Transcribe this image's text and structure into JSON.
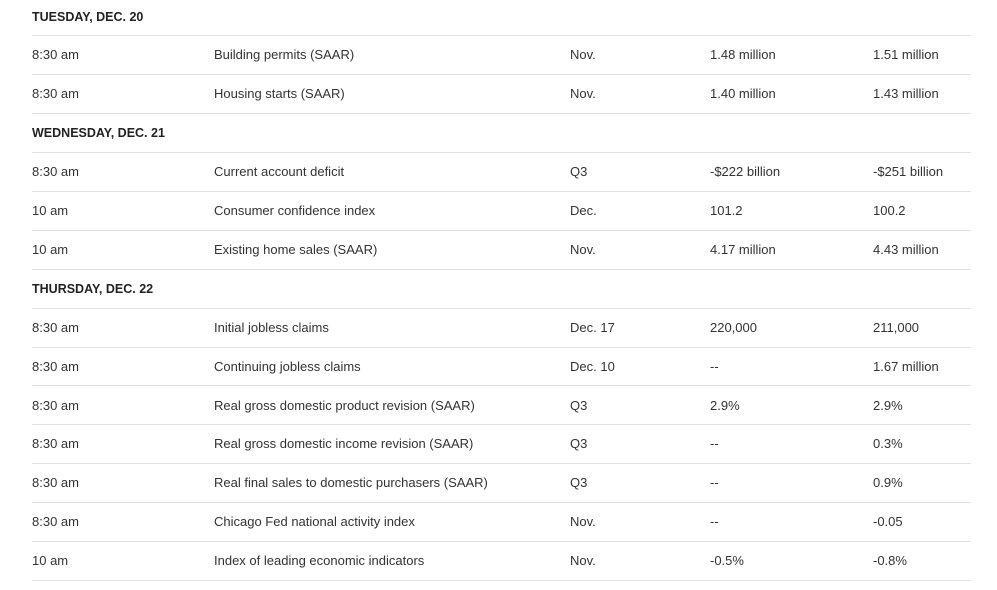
{
  "sections": [
    {
      "title": "TUESDAY, DEC. 20",
      "rows": [
        [
          "8:30 am",
          "Building permits (SAAR)",
          "Nov.",
          "1.48 million",
          "1.51 million"
        ],
        [
          "8:30 am",
          "Housing starts (SAAR)",
          "Nov.",
          "1.40 million",
          "1.43 million"
        ]
      ]
    },
    {
      "title": "WEDNESDAY, DEC. 21",
      "rows": [
        [
          "8:30 am",
          "Current account deficit",
          "Q3",
          "-$222 billion",
          "-$251 billion"
        ],
        [
          "10 am",
          "Consumer confidence index",
          "Dec.",
          "101.2",
          "100.2"
        ],
        [
          "10 am",
          "Existing home sales (SAAR)",
          "Nov.",
          "4.17 million",
          "4.43 million"
        ]
      ]
    },
    {
      "title": "THURSDAY, DEC. 22",
      "rows": [
        [
          "8:30 am",
          "Initial jobless claims",
          "Dec. 17",
          "220,000",
          "211,000"
        ],
        [
          "8:30 am",
          "Continuing jobless claims",
          "Dec. 10",
          "--",
          "1.67 million"
        ],
        [
          "8:30 am",
          "Real gross domestic product revision (SAAR)",
          "Q3",
          "2.9%",
          "2.9%"
        ],
        [
          "8:30 am",
          "Real gross domestic income revision (SAAR)",
          "Q3",
          "--",
          "0.3%"
        ],
        [
          "8:30 am",
          "Real final sales to domestic purchasers (SAAR)",
          "Q3",
          "--",
          "0.9%"
        ],
        [
          "8:30 am",
          "Chicago Fed national activity index",
          "Nov.",
          "--",
          "-0.05"
        ],
        [
          "10 am",
          "Index of leading economic indicators",
          "Nov.",
          "-0.5%",
          "-0.8%"
        ]
      ]
    }
  ]
}
